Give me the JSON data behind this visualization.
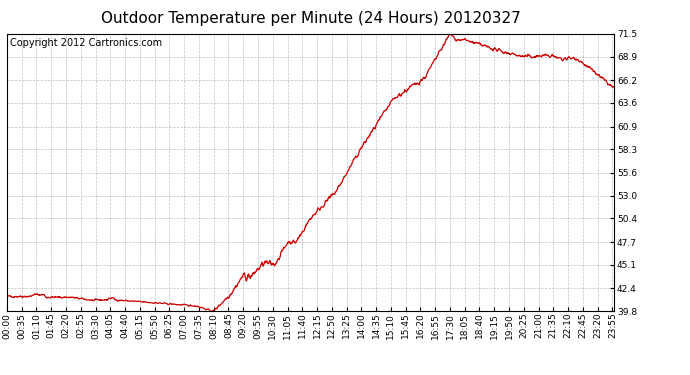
{
  "title": "Outdoor Temperature per Minute (24 Hours) 20120327",
  "copyright_text": "Copyright 2012 Cartronics.com",
  "line_color": "#cc0000",
  "background_color": "#ffffff",
  "plot_bg_color": "#ffffff",
  "grid_color": "#b0b0b0",
  "yticks": [
    39.8,
    42.4,
    45.1,
    47.7,
    50.4,
    53.0,
    55.6,
    58.3,
    60.9,
    63.6,
    66.2,
    68.9,
    71.5
  ],
  "ymin": 39.8,
  "ymax": 71.5,
  "total_minutes": 1440,
  "xtick_interval": 35,
  "x_tick_labels": [
    "00:00",
    "00:35",
    "01:10",
    "01:45",
    "02:20",
    "02:55",
    "03:30",
    "04:05",
    "04:40",
    "05:15",
    "05:50",
    "06:25",
    "07:00",
    "07:35",
    "08:10",
    "08:45",
    "09:20",
    "09:55",
    "10:30",
    "11:05",
    "11:40",
    "12:15",
    "12:50",
    "13:25",
    "14:00",
    "14:35",
    "15:10",
    "15:45",
    "16:20",
    "16:55",
    "17:30",
    "18:05",
    "18:40",
    "19:15",
    "19:50",
    "20:25",
    "21:00",
    "21:35",
    "22:10",
    "22:45",
    "23:20",
    "23:55"
  ],
  "title_fontsize": 11,
  "tick_fontsize": 6.5,
  "copyright_fontsize": 7,
  "seed": 42,
  "figwidth": 6.9,
  "figheight": 3.75,
  "dpi": 100
}
